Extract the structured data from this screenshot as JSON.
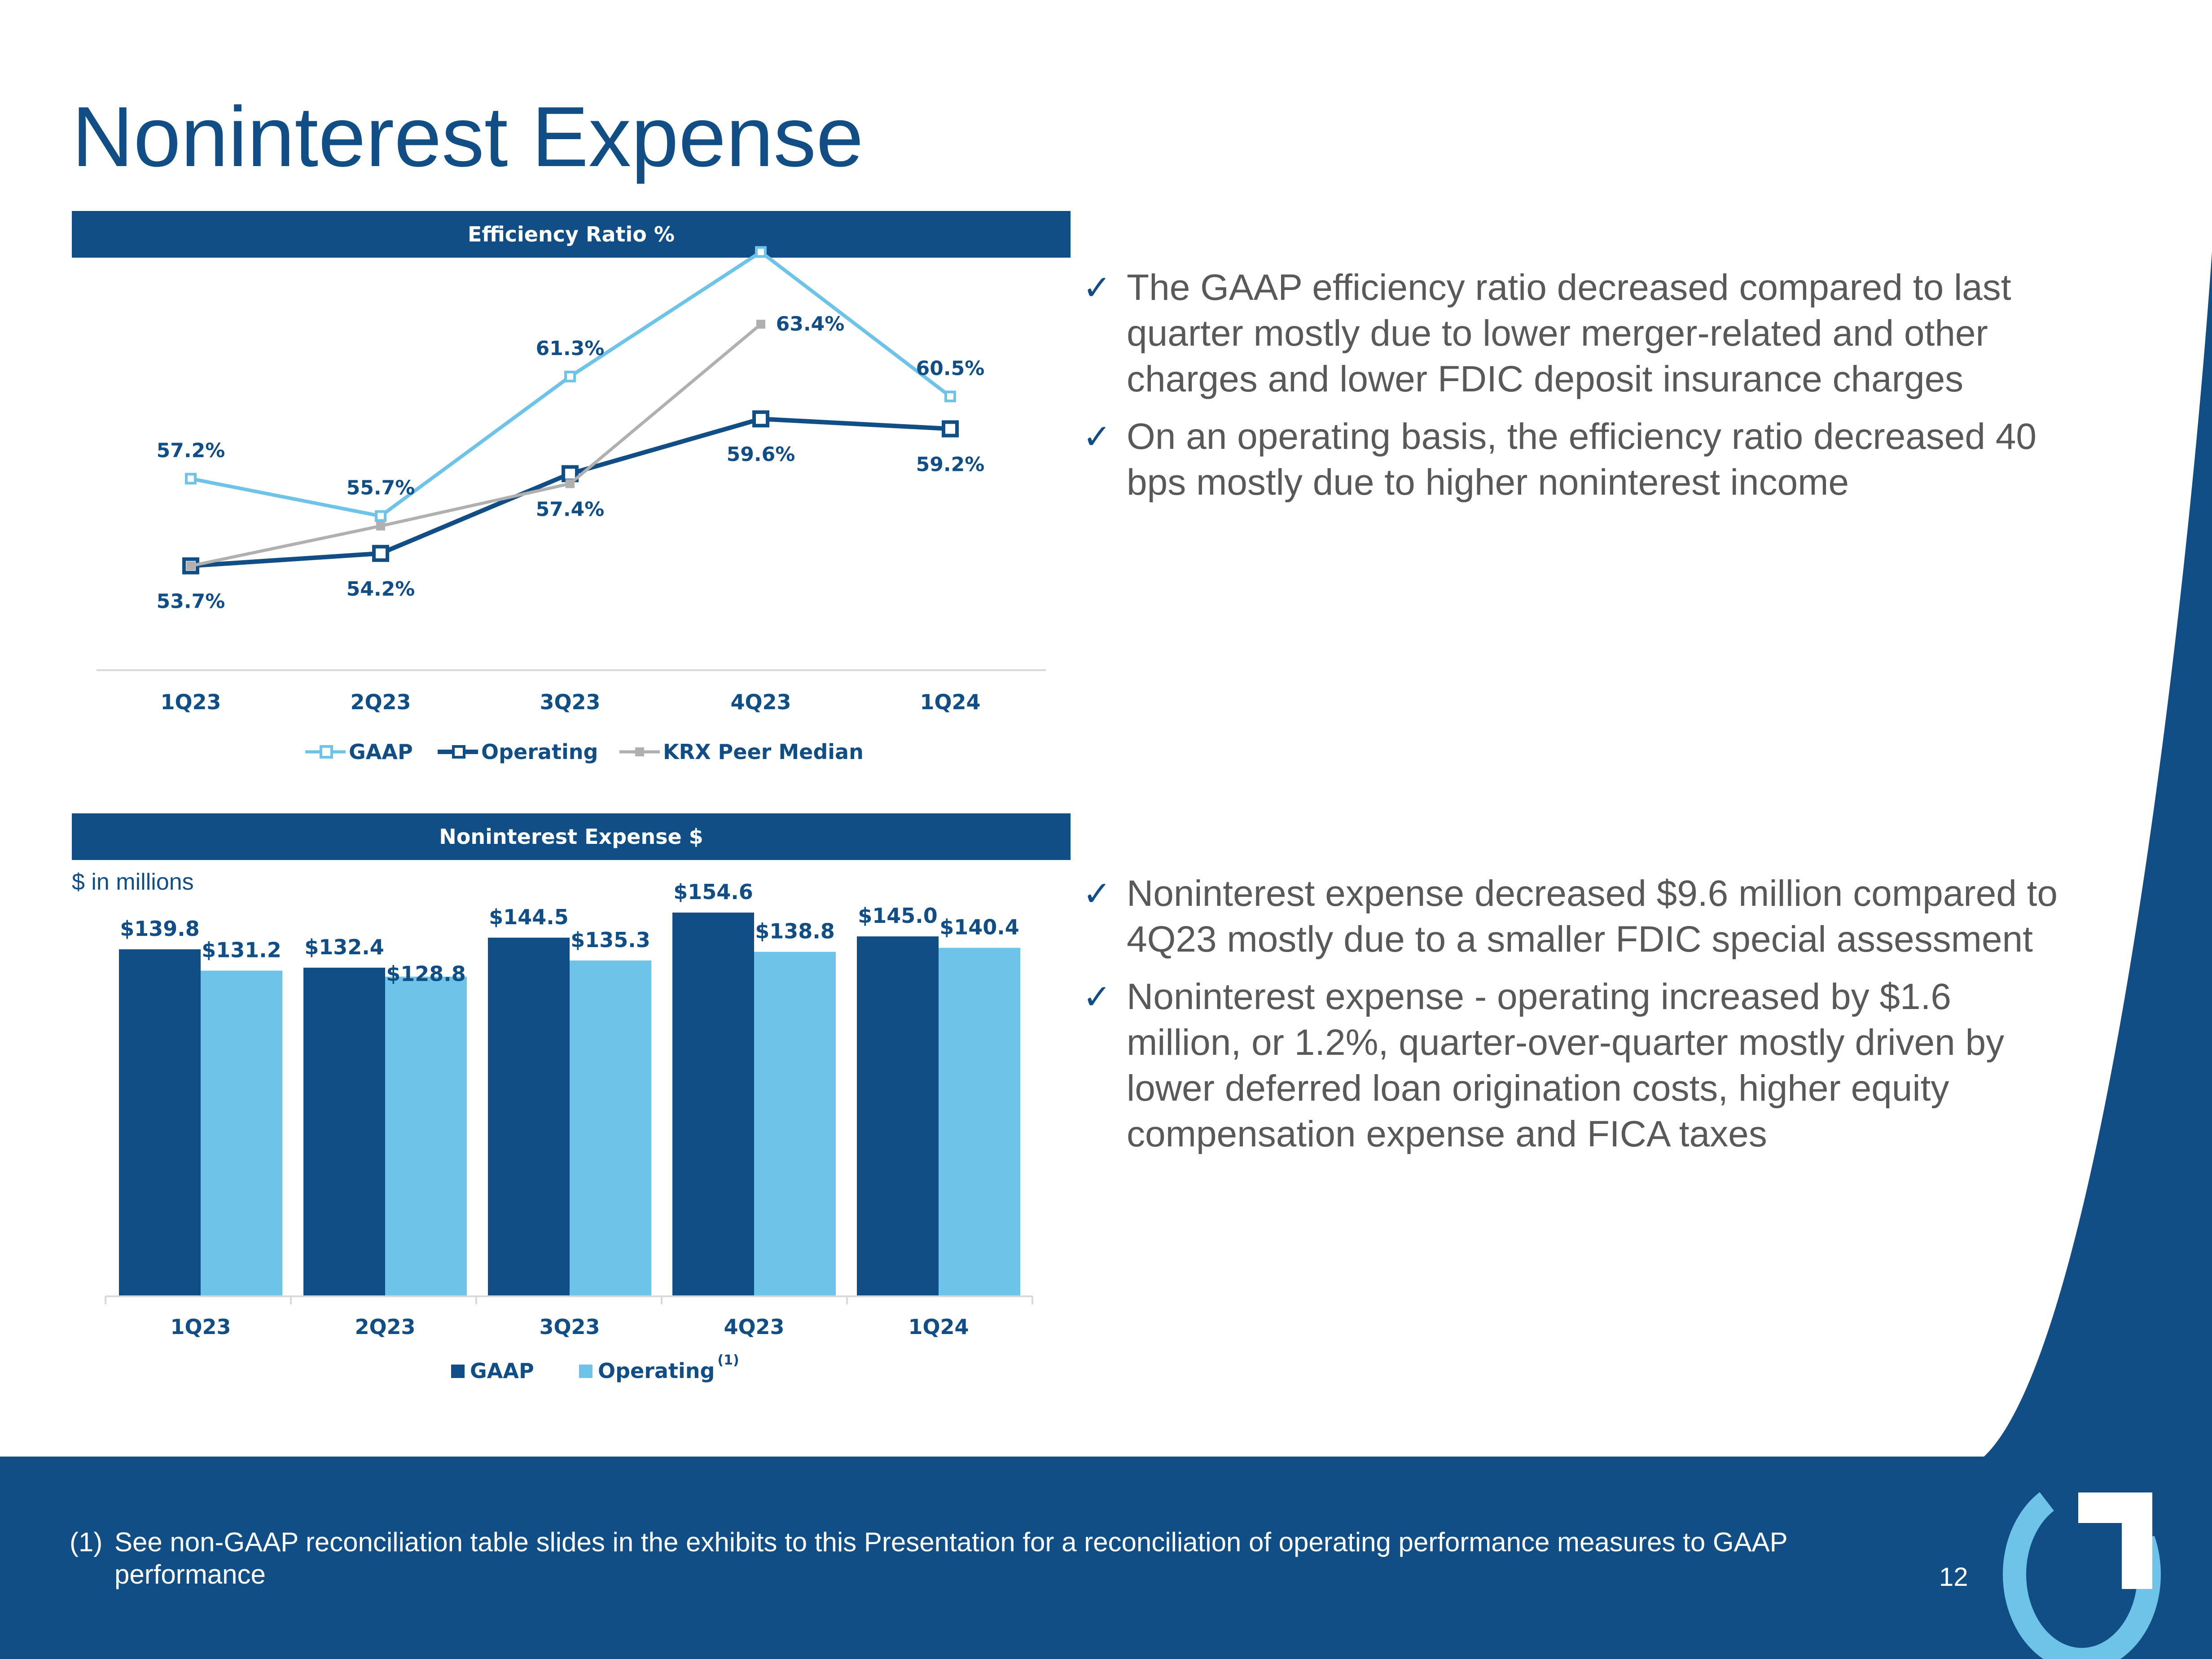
{
  "slide": {
    "title": "Noninterest Expense",
    "page_number": "12",
    "colors": {
      "navy": "#124e86",
      "light_blue": "#6ec4e8",
      "gray": "#b0b0b0",
      "text_gray": "#595959"
    }
  },
  "bullets_top": [
    "The GAAP efficiency ratio decreased compared to last quarter mostly due to lower merger-related and other charges and lower FDIC deposit insurance charges",
    "On an operating basis, the efficiency ratio decreased 40 bps mostly due to higher noninterest income"
  ],
  "bullets_bottom": [
    "Noninterest expense decreased $9.6 million compared to 4Q23 mostly due to a smaller FDIC special assessment",
    "Noninterest expense - operating increased by $1.6 million, or 1.2%, quarter-over-quarter mostly driven by lower deferred loan origination costs, higher equity compensation expense and FICA taxes"
  ],
  "footnote": {
    "marker": "(1)",
    "text": "See non-GAAP reconciliation table slides in the exhibits to this Presentation for a reconciliation of operating performance measures to GAAP performance"
  },
  "chart_data": [
    {
      "type": "line",
      "title": "Efficiency Ratio %",
      "categories": [
        "1Q23",
        "2Q23",
        "3Q23",
        "4Q23",
        "1Q24"
      ],
      "series": [
        {
          "name": "GAAP",
          "values": [
            57.2,
            55.7,
            61.3,
            66.3,
            60.5
          ],
          "labels": [
            "57.2%",
            "55.7%",
            "61.3%",
            "66.3%",
            "60.5%"
          ],
          "color": "#6ec4e8"
        },
        {
          "name": "Operating",
          "values": [
            53.7,
            54.2,
            57.4,
            59.6,
            59.2
          ],
          "labels": [
            "53.7%",
            "54.2%",
            "57.4%",
            "59.6%",
            "59.2%"
          ],
          "color": "#124e86"
        },
        {
          "name": "KRX Peer Median",
          "values": [
            53.7,
            55.3,
            57.0,
            63.4,
            null
          ],
          "labels": [
            "",
            "",
            "",
            "63.4%",
            ""
          ],
          "color": "#b0b0b0"
        }
      ],
      "ylim": [
        40,
        70
      ],
      "legend": "bottom"
    },
    {
      "type": "bar",
      "title": "Noninterest Expense $",
      "ylabel": "$ in millions",
      "categories": [
        "1Q23",
        "2Q23",
        "3Q23",
        "4Q23",
        "1Q24"
      ],
      "series": [
        {
          "name": "GAAP",
          "values": [
            139.8,
            132.4,
            144.5,
            154.6,
            145.0
          ],
          "labels": [
            "$139.8",
            "$132.4",
            "$144.5",
            "$154.6",
            "$145.0"
          ],
          "color": "#124e86"
        },
        {
          "name": "Operating",
          "superscript": "(1)",
          "values": [
            131.2,
            128.8,
            135.3,
            138.8,
            140.4
          ],
          "labels": [
            "$131.2",
            "$128.8",
            "$135.3",
            "$138.8",
            "$140.4"
          ],
          "color": "#6ec4e8"
        }
      ],
      "ylim": [
        0,
        160
      ],
      "legend": "bottom"
    }
  ]
}
